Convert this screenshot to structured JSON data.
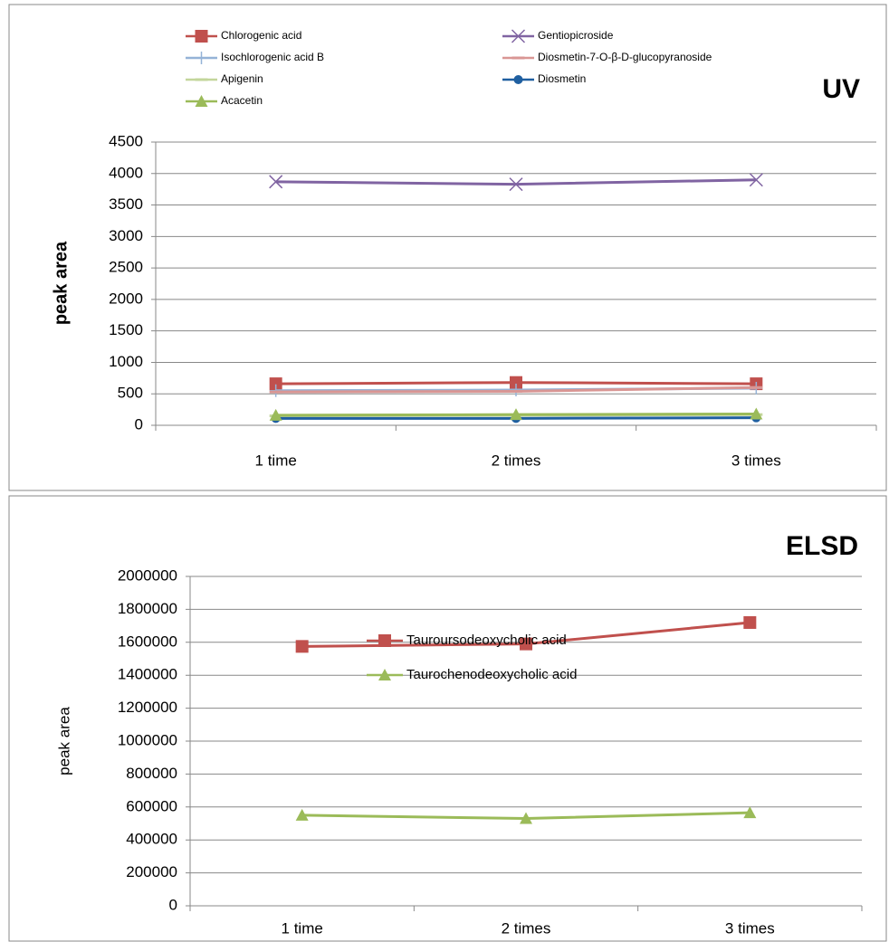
{
  "chart_data": [
    {
      "type": "line",
      "title": "UV",
      "y_label": "peak area",
      "categories": [
        "1 time",
        "2 times",
        "3 times"
      ],
      "ylim": [
        0,
        4500
      ],
      "yticks": [
        0,
        500,
        1000,
        1500,
        2000,
        2500,
        3000,
        3500,
        4000,
        4500
      ],
      "grid": true,
      "legend": "top",
      "series": [
        {
          "name": "Chlorogenic acid",
          "color": "#c0504d",
          "marker": "square",
          "values": [
            660,
            680,
            660
          ]
        },
        {
          "name": "Gentiopicroside",
          "color": "#8064a2",
          "marker": "x",
          "values": [
            3870,
            3830,
            3900
          ]
        },
        {
          "name": "Isochlorogenic acid B",
          "color": "#95b3d7",
          "marker": "plus",
          "values": [
            550,
            560,
            590
          ]
        },
        {
          "name": "Diosmetin-7-O-β-D-glucopyranoside",
          "color": "#d99694",
          "marker": "dash",
          "values": [
            530,
            540,
            600
          ]
        },
        {
          "name": "Apigenin",
          "color": "#c3d69b",
          "marker": "dash",
          "values": [
            150,
            160,
            170
          ]
        },
        {
          "name": "Diosmetin",
          "color": "#1f5fa0",
          "marker": "circle",
          "values": [
            110,
            110,
            120
          ]
        },
        {
          "name": "Acacetin",
          "color": "#9bbb59",
          "marker": "triangle",
          "values": [
            160,
            170,
            180
          ]
        }
      ]
    },
    {
      "type": "line",
      "title": "ELSD",
      "y_label": "peak area",
      "categories": [
        "1 time",
        "2 times",
        "3 times"
      ],
      "ylim": [
        0,
        2000000
      ],
      "yticks": [
        0,
        200000,
        400000,
        600000,
        800000,
        1000000,
        1200000,
        1400000,
        1600000,
        1800000,
        2000000
      ],
      "grid": true,
      "legend": "center",
      "series": [
        {
          "name": "Tauroursodeoxycholic acid",
          "color": "#c0504d",
          "marker": "square",
          "values": [
            1575000,
            1590000,
            1720000
          ]
        },
        {
          "name": "Taurochenodeoxycholic acid",
          "color": "#9bbb59",
          "marker": "triangle",
          "values": [
            550000,
            530000,
            565000
          ]
        }
      ]
    }
  ]
}
